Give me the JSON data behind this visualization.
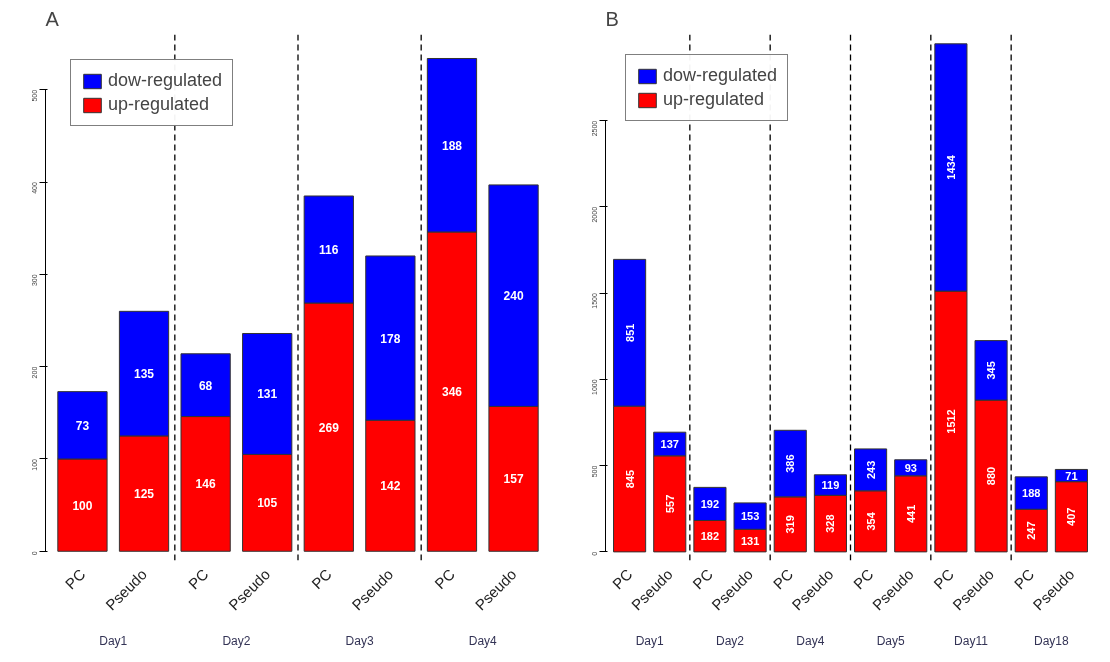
{
  "chart_data": [
    {
      "type": "bar",
      "title": "A",
      "stacked": true,
      "categories": [
        "PC",
        "Pseudo",
        "PC",
        "Pseudo",
        "PC",
        "Pseudo",
        "PC",
        "Pseudo"
      ],
      "series": [
        {
          "name": "up-regulated",
          "color": "#ff0000",
          "values": [
            100,
            125,
            146,
            105,
            269,
            142,
            346,
            157
          ]
        },
        {
          "name": "dow-regulated",
          "color": "#0000ff",
          "values": [
            73,
            135,
            68,
            131,
            116,
            178,
            188,
            240
          ]
        }
      ],
      "ylim": [
        -10,
        560
      ],
      "yticks": [
        0,
        100,
        200,
        300,
        400,
        500
      ],
      "grid": false,
      "legend": "top left",
      "data_labels": true,
      "annotations": [
        "Day1",
        "Day2",
        "Day3",
        "Day4"
      ]
    },
    {
      "type": "bar",
      "title": "B",
      "stacked": true,
      "categories": [
        "PC",
        "Pseudo",
        "PC",
        "Pseudo",
        "PC",
        "Pseudo",
        "PC",
        "Pseudo",
        "PC",
        "Pseudo",
        "PC",
        "Pseudo"
      ],
      "series": [
        {
          "name": "up-regulated",
          "color": "#ff0000",
          "values": [
            845,
            557,
            182,
            131,
            319,
            328,
            354,
            441,
            1512,
            880,
            247,
            407
          ]
        },
        {
          "name": "dow-regulated",
          "color": "#0000ff",
          "values": [
            851,
            137,
            192,
            153,
            386,
            119,
            243,
            93,
            1434,
            345,
            188,
            71
          ]
        }
      ],
      "ylim": [
        -50,
        3000
      ],
      "yticks": [
        0,
        500,
        1000,
        1500,
        2000,
        2500
      ],
      "grid": false,
      "legend": "top left",
      "data_labels": true,
      "annotations": [
        "Day1",
        "Day2",
        "Day4",
        "Day5",
        "Day11",
        "Day18"
      ]
    }
  ]
}
